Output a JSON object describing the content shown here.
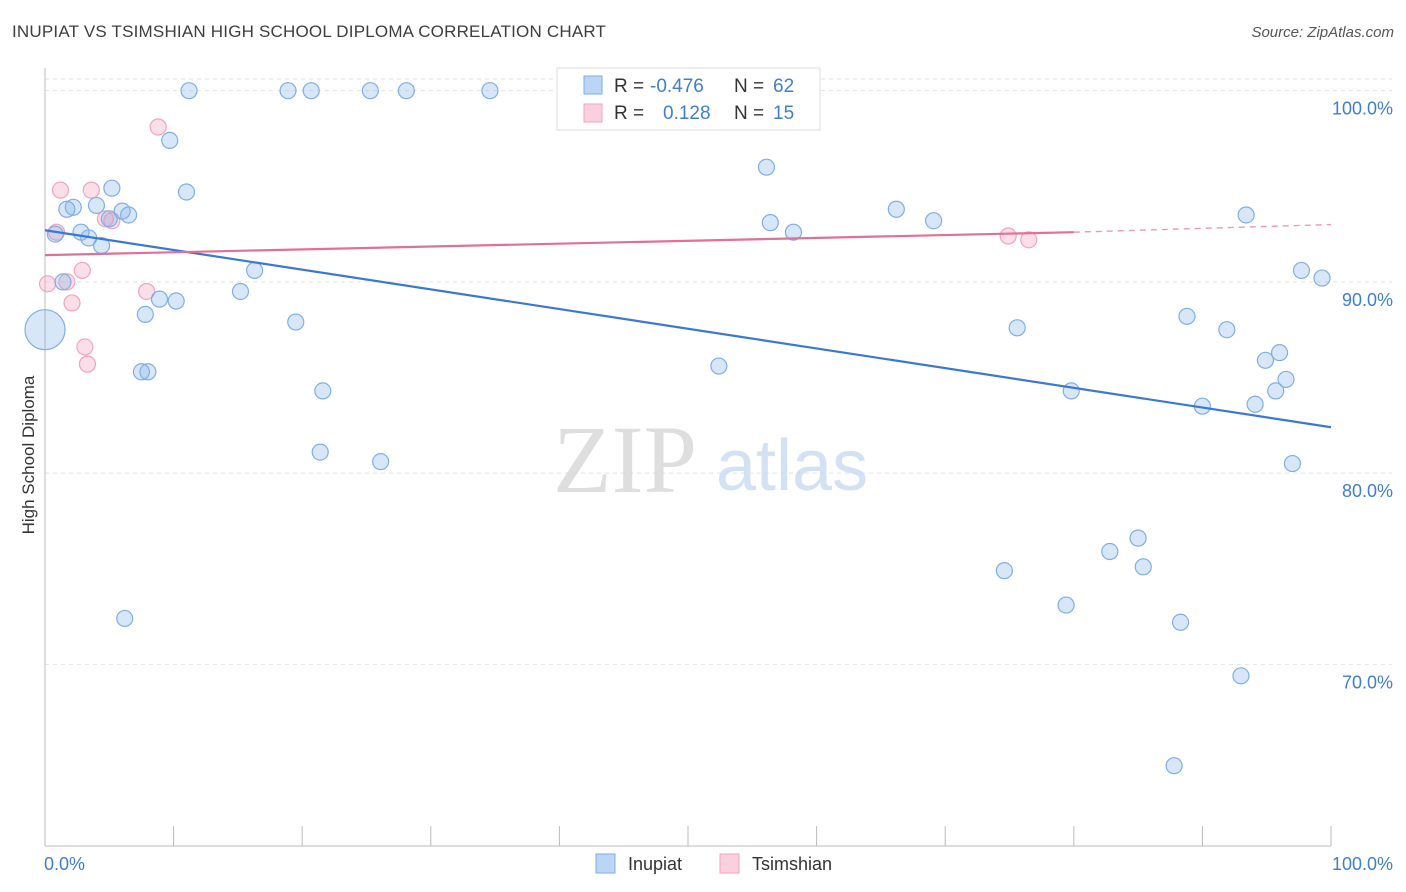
{
  "title": "INUPIAT VS TSIMSHIAN HIGH SCHOOL DIPLOMA CORRELATION CHART",
  "source": "Source: ZipAtlas.com",
  "watermark": {
    "zip": "ZIP",
    "atlas": "atlas"
  },
  "legend_box": {
    "rows": [
      {
        "r_label": "R =",
        "r_value": "-0.476",
        "n_label": "N =",
        "n_value": "62"
      },
      {
        "r_label": "R =",
        "r_value": "0.128",
        "n_label": "N =",
        "n_value": "15"
      }
    ]
  },
  "bottom_legend": {
    "inupiat": "Inupiat",
    "tsimshian": "Tsimshian"
  },
  "chart_data": {
    "type": "scatter",
    "title": "INUPIAT VS TSIMSHIAN HIGH SCHOOL DIPLOMA CORRELATION CHART",
    "xlabel": "",
    "ylabel": "High School Diploma",
    "xlim": [
      0,
      100
    ],
    "ylim": [
      60.5,
      101.5
    ],
    "x_tick_labels": [
      "0.0%",
      "100.0%"
    ],
    "y_ticks": [
      70,
      80,
      90,
      100
    ],
    "y_tick_labels": [
      "70.0%",
      "80.0%",
      "90.0%",
      "100.0%"
    ],
    "grid": true,
    "colors": {
      "inupiat": "#7eaee8",
      "tsimshian": "#f2a3bd",
      "inupiat_line": "#3a78d4",
      "tsimshian_line": "#e46e96",
      "tick": "#3f7ecf"
    },
    "series": [
      {
        "name": "Inupiat",
        "r": -0.476,
        "n": 62,
        "trend": {
          "x0": 0,
          "y0": 92.7,
          "x1": 100,
          "y1": 82.4
        },
        "points": [
          [
            0.0,
            87.5
          ],
          [
            0.8,
            92.5
          ],
          [
            1.4,
            90.0
          ],
          [
            1.7,
            93.8
          ],
          [
            2.2,
            93.9
          ],
          [
            2.8,
            92.6
          ],
          [
            3.4,
            92.3
          ],
          [
            4.0,
            94.0
          ],
          [
            4.4,
            91.9
          ],
          [
            5.0,
            93.3
          ],
          [
            5.2,
            94.9
          ],
          [
            6.0,
            93.7
          ],
          [
            6.5,
            93.5
          ],
          [
            6.2,
            72.4
          ],
          [
            7.5,
            85.3
          ],
          [
            7.8,
            88.3
          ],
          [
            8.0,
            85.3
          ],
          [
            8.9,
            89.1
          ],
          [
            9.7,
            97.4
          ],
          [
            10.2,
            89.0
          ],
          [
            11.0,
            94.7
          ],
          [
            11.2,
            100.0
          ],
          [
            15.2,
            89.5
          ],
          [
            16.3,
            90.6
          ],
          [
            18.9,
            100.0
          ],
          [
            19.5,
            87.9
          ],
          [
            20.7,
            100.0
          ],
          [
            21.4,
            81.1
          ],
          [
            21.6,
            84.3
          ],
          [
            25.3,
            100.0
          ],
          [
            26.1,
            80.6
          ],
          [
            28.1,
            100.0
          ],
          [
            34.6,
            100.0
          ],
          [
            47.3,
            100.0
          ],
          [
            52.4,
            85.6
          ],
          [
            56.1,
            96.0
          ],
          [
            56.4,
            93.1
          ],
          [
            58.2,
            92.6
          ],
          [
            66.2,
            93.8
          ],
          [
            69.1,
            93.2
          ],
          [
            74.6,
            74.9
          ],
          [
            75.6,
            87.6
          ],
          [
            79.4,
            73.1
          ],
          [
            79.8,
            84.3
          ],
          [
            82.8,
            75.9
          ],
          [
            85.0,
            76.6
          ],
          [
            85.4,
            75.1
          ],
          [
            87.8,
            64.7
          ],
          [
            88.3,
            72.2
          ],
          [
            88.8,
            88.2
          ],
          [
            90.0,
            83.5
          ],
          [
            91.9,
            87.5
          ],
          [
            93.0,
            69.4
          ],
          [
            93.4,
            93.5
          ],
          [
            94.1,
            83.6
          ],
          [
            94.9,
            85.9
          ],
          [
            95.7,
            84.3
          ],
          [
            96.0,
            86.3
          ],
          [
            96.5,
            84.9
          ],
          [
            97.0,
            80.5
          ],
          [
            97.7,
            90.6
          ],
          [
            99.3,
            90.2
          ]
        ]
      },
      {
        "name": "Tsimshian",
        "r": 0.128,
        "n": 15,
        "trend": {
          "x0": 0,
          "y0": 91.4,
          "x1": 80,
          "y1": 92.6,
          "x_dash_end": 100,
          "y_dash_end": 93.0
        },
        "points": [
          [
            0.2,
            89.9
          ],
          [
            0.9,
            92.6
          ],
          [
            1.2,
            94.8
          ],
          [
            1.7,
            90.0
          ],
          [
            2.1,
            88.9
          ],
          [
            2.9,
            90.6
          ],
          [
            3.1,
            86.6
          ],
          [
            3.3,
            85.7
          ],
          [
            3.6,
            94.8
          ],
          [
            4.7,
            93.3
          ],
          [
            5.2,
            93.2
          ],
          [
            7.9,
            89.5
          ],
          [
            8.8,
            98.1
          ],
          [
            74.9,
            92.4
          ],
          [
            76.5,
            92.2
          ]
        ]
      }
    ]
  }
}
